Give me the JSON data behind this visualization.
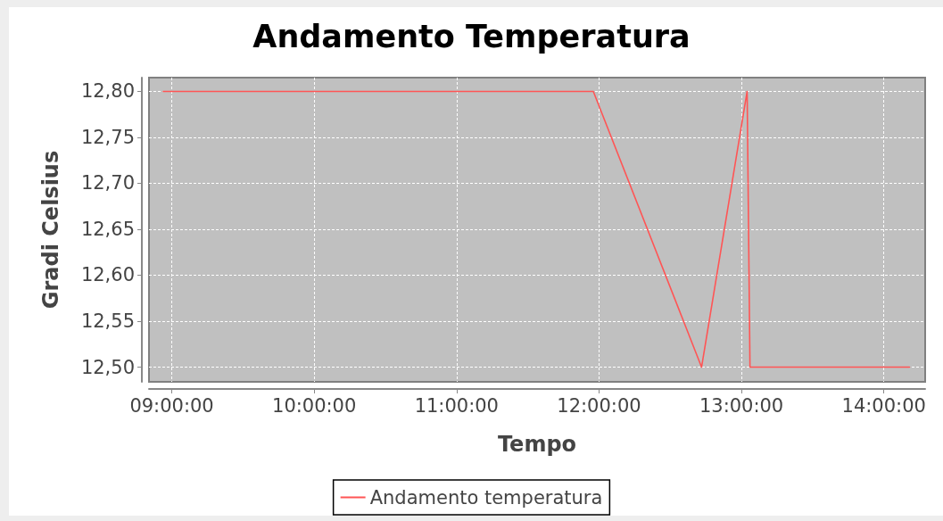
{
  "chart_data": {
    "type": "line",
    "title": "Andamento Temperatura",
    "xlabel": "Tempo",
    "ylabel": "Gradi Celsius",
    "x": [
      8.94,
      11.96,
      12.72,
      13.04,
      13.06,
      14.18
    ],
    "series": [
      {
        "name": "Andamento temperatura",
        "color": "#ff5555",
        "values": [
          12.8,
          12.8,
          12.5,
          12.8,
          12.5,
          12.5
        ]
      }
    ],
    "xlim": [
      8.84,
      14.29
    ],
    "ylim": [
      12.484,
      12.815
    ],
    "xticks": [
      {
        "value": 9,
        "label": "09:00:00"
      },
      {
        "value": 10,
        "label": "10:00:00"
      },
      {
        "value": 11,
        "label": "11:00:00"
      },
      {
        "value": 12,
        "label": "12:00:00"
      },
      {
        "value": 13,
        "label": "13:00:00"
      },
      {
        "value": 14,
        "label": "14:00:00"
      }
    ],
    "yticks": [
      {
        "value": 12.5,
        "label": "12,50"
      },
      {
        "value": 12.55,
        "label": "12,55"
      },
      {
        "value": 12.6,
        "label": "12,60"
      },
      {
        "value": 12.65,
        "label": "12,65"
      },
      {
        "value": 12.7,
        "label": "12,70"
      },
      {
        "value": 12.75,
        "label": "12,75"
      },
      {
        "value": 12.8,
        "label": "12,80"
      }
    ],
    "grid": true,
    "legend": "bottom",
    "marker": "none",
    "line_style": "solid"
  }
}
